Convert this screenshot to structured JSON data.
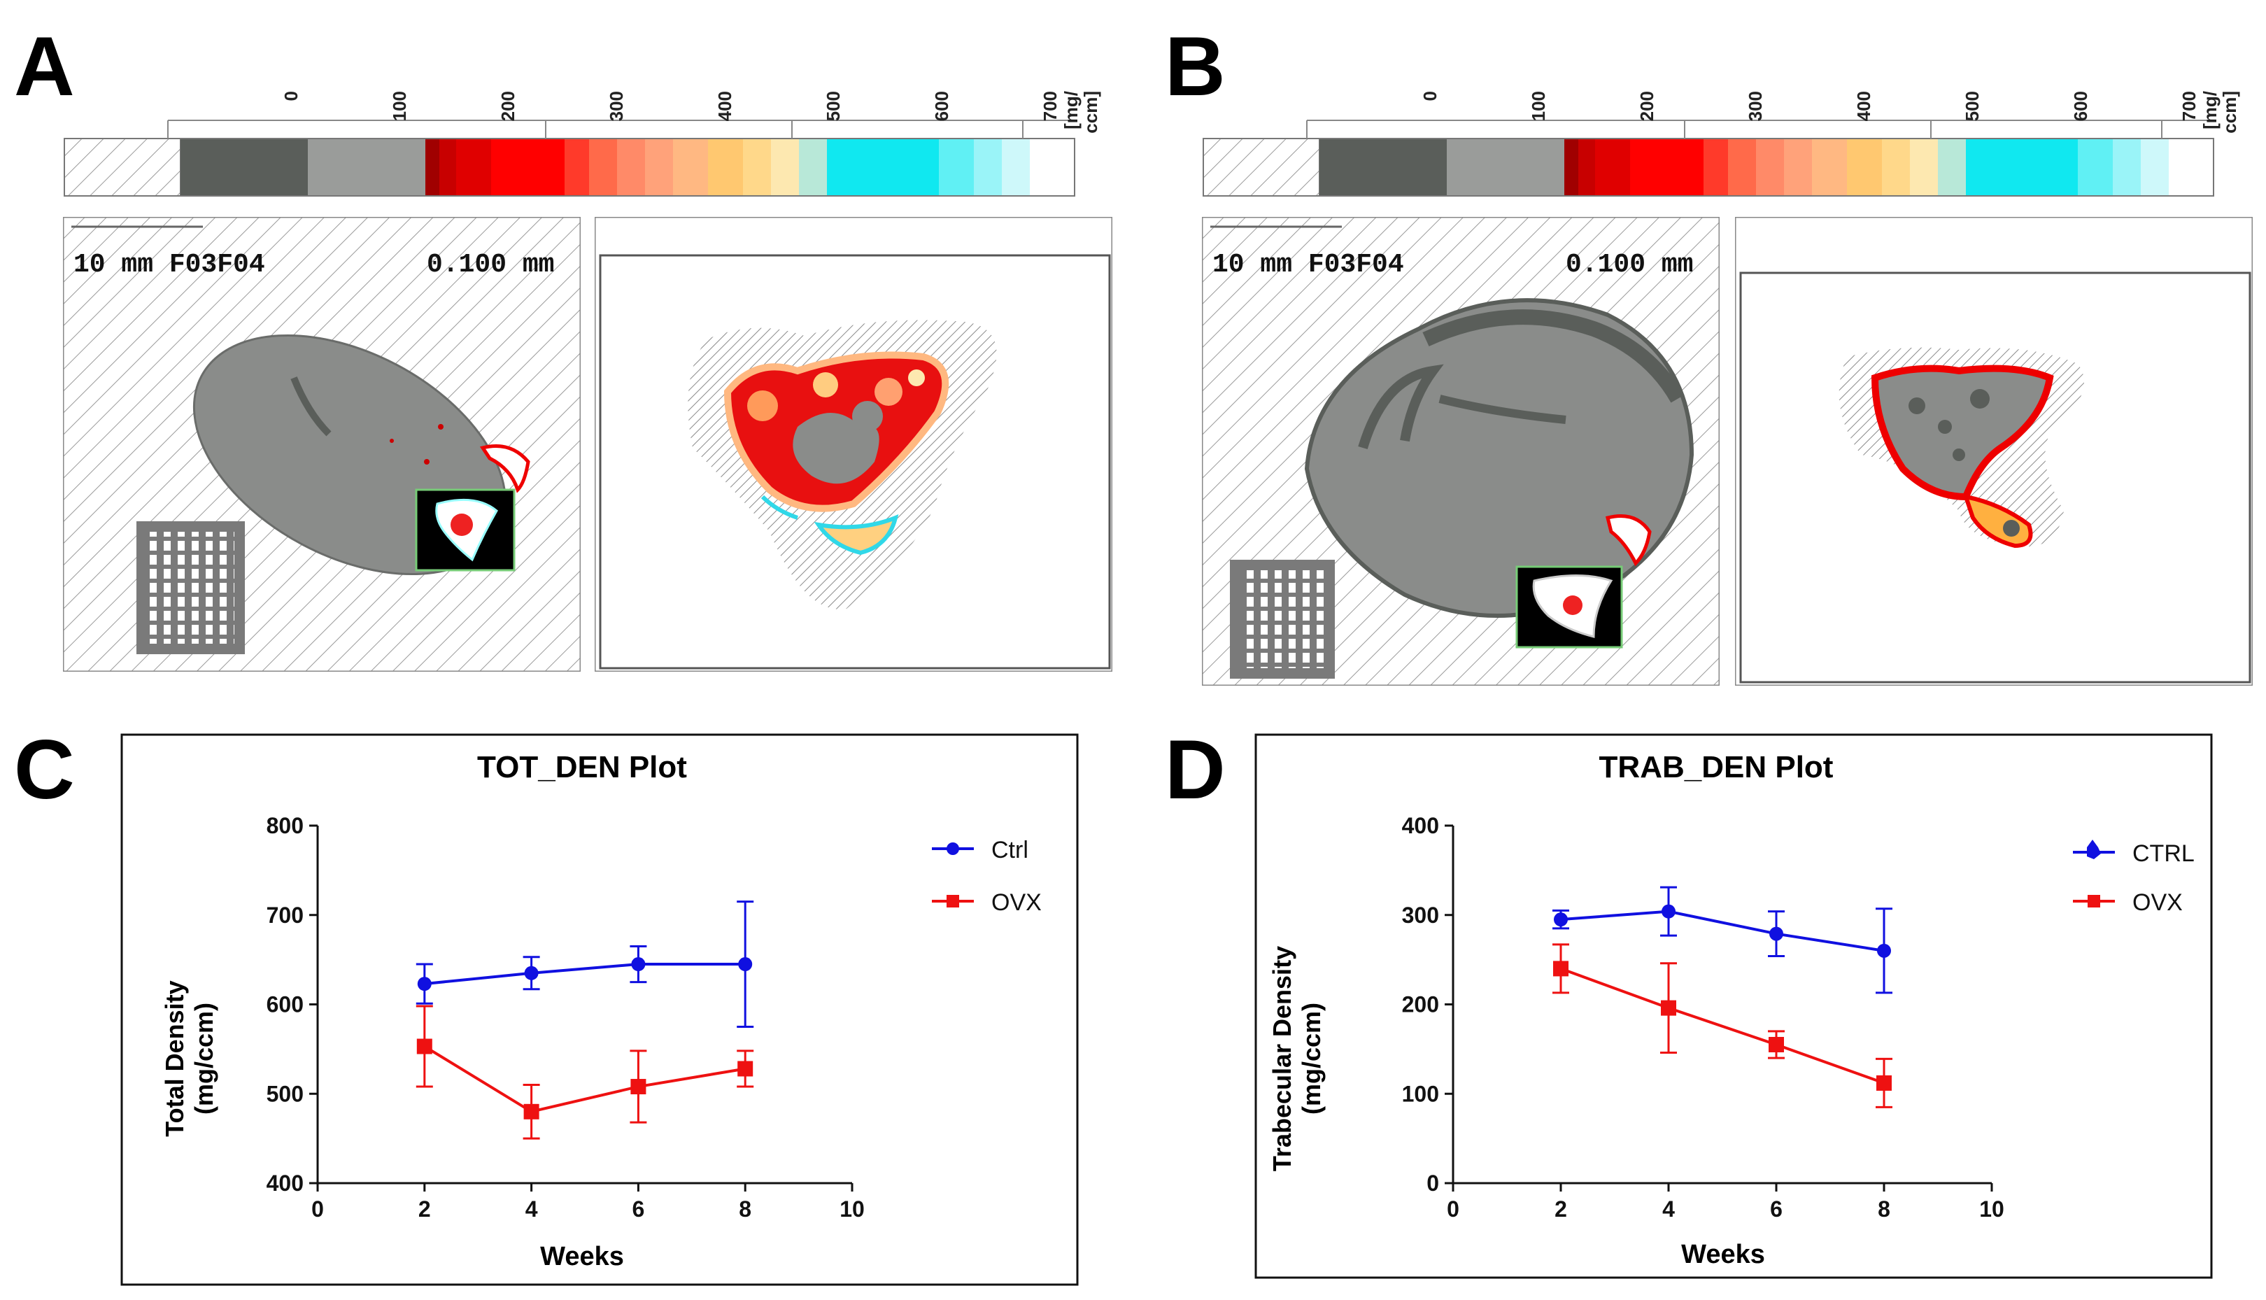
{
  "figure": {
    "panel_labels": [
      "A",
      "B",
      "C",
      "D"
    ],
    "colorbar": {
      "tick_labels": [
        "0",
        "100",
        "200",
        "300",
        "400",
        "500",
        "600",
        "700"
      ],
      "unit_label_line1": "[mg/",
      "unit_label_line2": "ccm]"
    },
    "panel_a": {
      "scan_header": "10  mm F03F04",
      "scale_label": "0.100 mm"
    },
    "panel_b": {
      "scan_header": "10  mm F03F04",
      "scale_label": "0.100 mm"
    },
    "colors": {
      "ctrl": "#1010e0",
      "ovx": "#ee1111",
      "bone_gray": "#8a8c8a",
      "dark_gray": "#5a5e5a"
    }
  },
  "chart_data": [
    {
      "type": "line",
      "title": "TOT_DEN Plot",
      "xlabel": "Weeks",
      "ylabel_line1": "Total Density",
      "ylabel_line2": "(mg/ccm)",
      "xlim": [
        0,
        10
      ],
      "ylim": [
        400,
        800
      ],
      "xticks": [
        0,
        2,
        4,
        6,
        8,
        10
      ],
      "yticks": [
        400,
        500,
        600,
        700,
        800
      ],
      "series": [
        {
          "name": "Ctrl",
          "color": "#1010e0",
          "marker": "circle",
          "x": [
            2,
            4,
            6,
            8
          ],
          "y": [
            623,
            635,
            645,
            645
          ],
          "err": [
            22,
            18,
            20,
            70
          ]
        },
        {
          "name": "OVX",
          "color": "#ee1111",
          "marker": "square",
          "x": [
            2,
            4,
            6,
            8
          ],
          "y": [
            553,
            480,
            508,
            528
          ],
          "err": [
            45,
            30,
            40,
            20
          ]
        }
      ]
    },
    {
      "type": "line",
      "title": "TRAB_DEN Plot",
      "xlabel": "Weeks",
      "ylabel_line1": "Trabecular Density",
      "ylabel_line2": "(mg/ccm)",
      "xlim": [
        0,
        10
      ],
      "ylim": [
        0,
        400
      ],
      "xticks": [
        0,
        2,
        4,
        6,
        8,
        10
      ],
      "yticks": [
        0,
        100,
        200,
        300,
        400
      ],
      "series": [
        {
          "name": "CTRL",
          "color": "#1010e0",
          "marker": "circle",
          "x": [
            2,
            4,
            6,
            8
          ],
          "y": [
            295,
            304,
            279,
            260
          ],
          "err": [
            10,
            27,
            25,
            47
          ]
        },
        {
          "name": "OVX",
          "color": "#ee1111",
          "marker": "square",
          "x": [
            2,
            4,
            6,
            8
          ],
          "y": [
            240,
            196,
            155,
            112
          ],
          "err": [
            27,
            50,
            15,
            27
          ]
        }
      ]
    }
  ]
}
